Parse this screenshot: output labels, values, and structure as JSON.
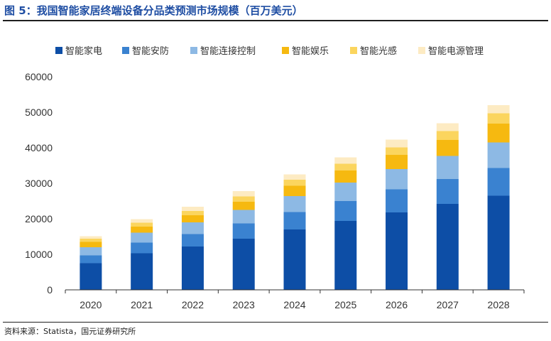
{
  "title": "图 5：我国智能家居终端设备分品类预测市场规模（百万美元）",
  "source": "资料来源：Statista，国元证券研究所",
  "chart_data": {
    "type": "bar",
    "stacked": true,
    "title": "图 5：我国智能家居终端设备分品类预测市场规模（百万美元）",
    "xlabel": "",
    "ylabel": "",
    "ylim": [
      0,
      60000
    ],
    "yticks": [
      0,
      10000,
      20000,
      30000,
      40000,
      50000,
      60000
    ],
    "grid": false,
    "legend_position": "top",
    "categories": [
      "2020",
      "2021",
      "2022",
      "2023",
      "2024",
      "2025",
      "2026",
      "2027",
      "2028"
    ],
    "series": [
      {
        "name": "智能家电",
        "color": "#0d4ea6",
        "values": [
          7500,
          10300,
          12200,
          14400,
          17000,
          19400,
          21800,
          24200,
          26500
        ]
      },
      {
        "name": "智能安防",
        "color": "#3a82d0",
        "values": [
          2200,
          3000,
          3500,
          4300,
          4900,
          5600,
          6500,
          7000,
          7800
        ]
      },
      {
        "name": "智能连接控制",
        "color": "#8db9e4",
        "values": [
          2300,
          2800,
          3300,
          3800,
          4500,
          5200,
          5700,
          6500,
          7200
        ]
      },
      {
        "name": "智能娱乐",
        "color": "#f6b910",
        "values": [
          1500,
          1700,
          2000,
          2300,
          2900,
          3400,
          4000,
          4500,
          5300
        ]
      },
      {
        "name": "智能光感",
        "color": "#fbd55e",
        "values": [
          900,
          1100,
          1200,
          1500,
          1700,
          1900,
          2100,
          2500,
          2900
        ]
      },
      {
        "name": "智能电源管理",
        "color": "#fdebc3",
        "values": [
          700,
          1000,
          1200,
          1500,
          1500,
          1800,
          2200,
          2200,
          2300
        ]
      }
    ]
  }
}
